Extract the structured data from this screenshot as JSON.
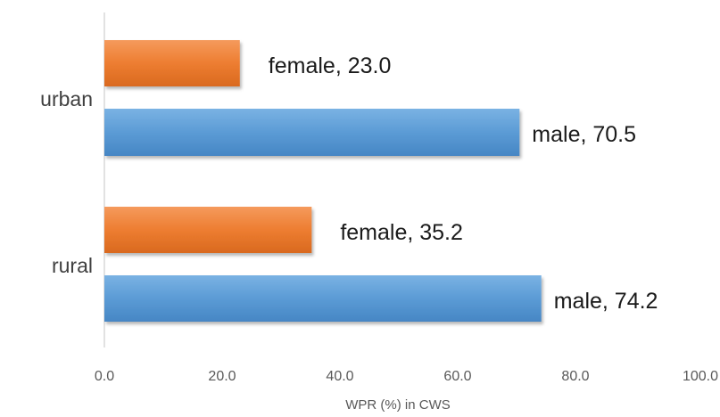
{
  "chart_data": {
    "type": "bar",
    "orientation": "horizontal",
    "title": "",
    "xlabel": "WPR (%) in CWS",
    "ylabel": "",
    "xlim": [
      0,
      100
    ],
    "x_ticks": [
      "0.0",
      "20.0",
      "40.0",
      "60.0",
      "80.0",
      "100.0"
    ],
    "categories": [
      "urban",
      "rural"
    ],
    "series": [
      {
        "name": "female",
        "color": "#ED7D31",
        "values": [
          23.0,
          35.2
        ]
      },
      {
        "name": "male",
        "color": "#5B9BD5",
        "values": [
          70.5,
          74.2
        ]
      }
    ],
    "data_labels": [
      [
        "female, 23.0",
        "female, 35.2"
      ],
      [
        "male, 70.5",
        "male, 74.2"
      ]
    ],
    "grid": false,
    "legend": "none"
  }
}
